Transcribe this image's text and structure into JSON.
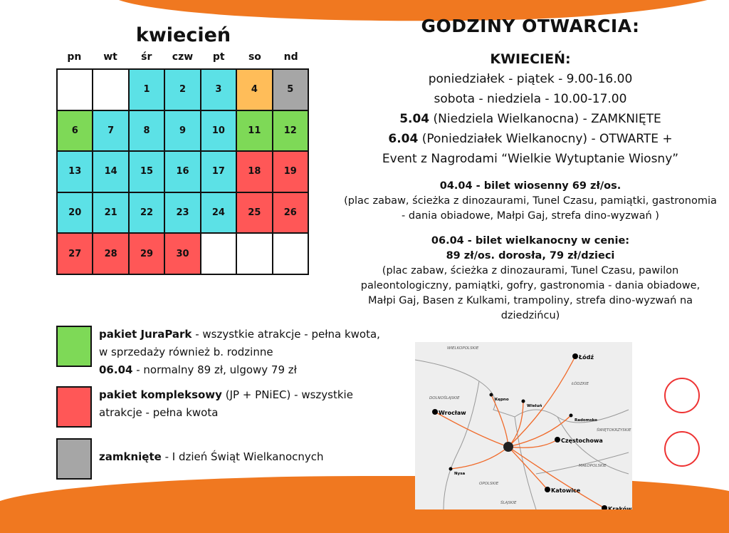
{
  "calendar": {
    "title": "kwiecień",
    "weekdays": [
      "pn",
      "wt",
      "śr",
      "czw",
      "pt",
      "so",
      "nd"
    ],
    "cells": [
      {
        "d": "",
        "c": "white"
      },
      {
        "d": "",
        "c": "white"
      },
      {
        "d": "1",
        "c": "cyan"
      },
      {
        "d": "2",
        "c": "cyan"
      },
      {
        "d": "3",
        "c": "cyan"
      },
      {
        "d": "4",
        "c": "orange"
      },
      {
        "d": "5",
        "c": "gray"
      },
      {
        "d": "6",
        "c": "green"
      },
      {
        "d": "7",
        "c": "cyan"
      },
      {
        "d": "8",
        "c": "cyan"
      },
      {
        "d": "9",
        "c": "cyan"
      },
      {
        "d": "10",
        "c": "cyan"
      },
      {
        "d": "11",
        "c": "green"
      },
      {
        "d": "12",
        "c": "green"
      },
      {
        "d": "13",
        "c": "cyan"
      },
      {
        "d": "14",
        "c": "cyan"
      },
      {
        "d": "15",
        "c": "cyan"
      },
      {
        "d": "16",
        "c": "cyan"
      },
      {
        "d": "17",
        "c": "cyan"
      },
      {
        "d": "18",
        "c": "red"
      },
      {
        "d": "19",
        "c": "red"
      },
      {
        "d": "20",
        "c": "cyan"
      },
      {
        "d": "21",
        "c": "cyan"
      },
      {
        "d": "22",
        "c": "cyan"
      },
      {
        "d": "23",
        "c": "cyan"
      },
      {
        "d": "24",
        "c": "cyan"
      },
      {
        "d": "25",
        "c": "red"
      },
      {
        "d": "26",
        "c": "red"
      },
      {
        "d": "27",
        "c": "red"
      },
      {
        "d": "28",
        "c": "red"
      },
      {
        "d": "29",
        "c": "red"
      },
      {
        "d": "30",
        "c": "red"
      },
      {
        "d": "",
        "c": "white"
      },
      {
        "d": "",
        "c": "white"
      },
      {
        "d": "",
        "c": "white"
      }
    ]
  },
  "legend": [
    {
      "bold": "pakiet JuraPark",
      "text": " - wszystkie atrakcje - pełna kwota, w sprzedaży również b. rodzinne",
      "bold2": "06.04",
      "text2": " - normalny 89 zł, ulgowy 79 zł",
      "color": "#7ed957"
    },
    {
      "bold": "pakiet kompleksowy",
      "text": " (JP + PNiEC) - wszystkie atrakcje - pełna kwota",
      "color": "#ff5757"
    },
    {
      "bold": "zamknięte",
      "text": " - I dzień Świąt Wielkanocnych",
      "color": "#a6a6a6"
    }
  ],
  "hours": {
    "title": "GODZINY OTWARCIA:",
    "month": "KWIECIEŃ:",
    "weekdays": "poniedziałek - piątek - 9.00-16.00",
    "weekend": "sobota - niedziela - 10.00-17.00",
    "easter_sun_date": "5.04",
    "easter_sun": " (Niedziela Wielkanocna) - ZAMKNIĘTE",
    "easter_mon_date": "6.04",
    "easter_mon": " (Poniedziałek Wielkanocny) - OTWARTE +",
    "event": "Event z Nagrodami “Wielkie Wytuptanie Wiosny”"
  },
  "tickets": [
    {
      "head": "04.04 - bilet wiosenny 69 zł/os.",
      "desc": "(plac zabaw, ścieżka z dinozaurami, Tunel Czasu, pamiątki, gastronomia - dania obiadowe, Małpi Gaj,  strefa dino-wyzwań )"
    },
    {
      "head": "06.04 - bilet wielkanocny w cenie:",
      "head2": "89 zł/os. dorosła, 79 zł/dzieci",
      "desc": "(plac zabaw, ścieżka z dinozaurami, Tunel Czasu, pawilon paleontologiczny, pamiątki, gofry, gastronomia - dania obiadowe, Małpi Gaj, Basen z Kulkami, trampoliny, strefa dino-wyzwań na dziedzińcu)"
    }
  ],
  "map": {
    "regions": [
      "WIELKOPOLSKIE",
      "DOLNOŚLĄSKIE",
      "ŁÓDZKIE",
      "OPOLSKIE",
      "ŚWIĘTOKRZYSKIE",
      "MAŁOPOLSKIE",
      "ŚLĄSKIE"
    ],
    "cities": [
      "Łódź",
      "Kępno",
      "Wieluń",
      "Wrocław",
      "Radomsko",
      "Częstochowa",
      "Nysa",
      "Katowice",
      "Kraków"
    ]
  }
}
